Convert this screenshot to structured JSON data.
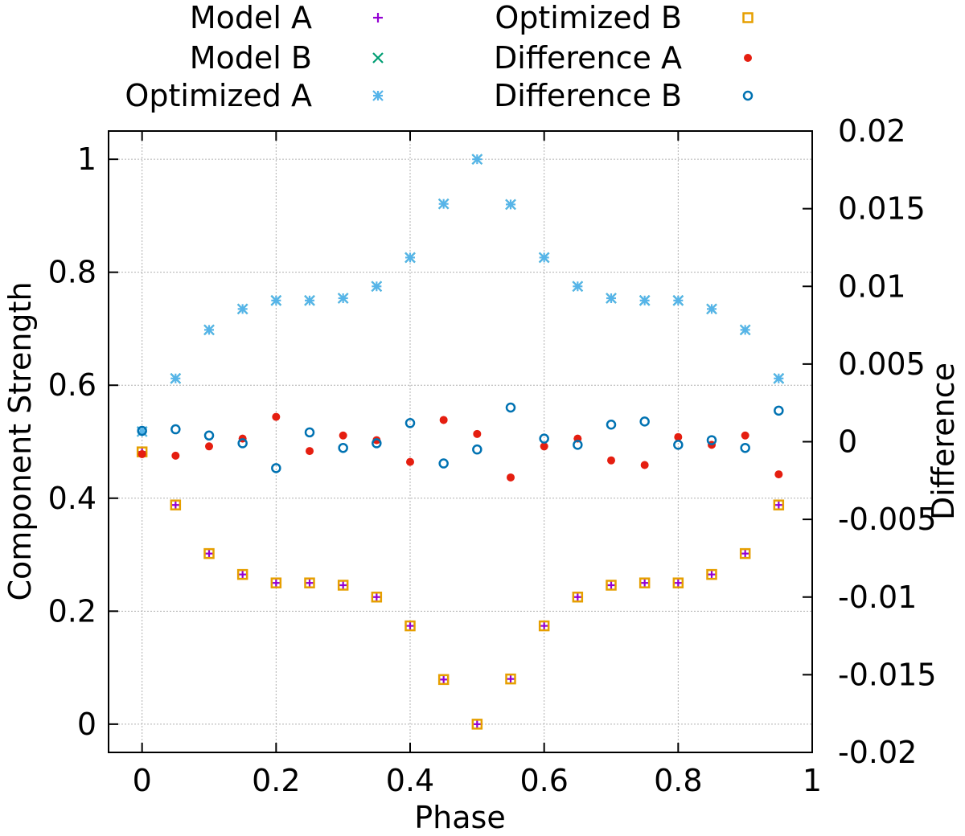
{
  "chart_data": {
    "type": "scatter",
    "xlabel": "Phase",
    "ylabel": "Component Strength",
    "y2label": "Difference",
    "xlim": [
      -0.05,
      1.0
    ],
    "ylim": [
      -0.05,
      1.05
    ],
    "y2lim": [
      -0.02,
      0.02
    ],
    "xticks": [
      "0",
      "0.2",
      "0.4",
      "0.6",
      "0.8",
      "1"
    ],
    "xtick_values": [
      0,
      0.2,
      0.4,
      0.6,
      0.8,
      1.0
    ],
    "yticks": [
      "0",
      "0.2",
      "0.4",
      "0.6",
      "0.8",
      "1"
    ],
    "ytick_values": [
      0,
      0.2,
      0.4,
      0.6,
      0.8,
      1.0
    ],
    "y2ticks": [
      "-0.02",
      "-0.015",
      "-0.01",
      "-0.005",
      "0",
      "0.005",
      "0.01",
      "0.015",
      "0.02"
    ],
    "y2tick_values": [
      -0.02,
      -0.015,
      -0.01,
      -0.005,
      0,
      0.005,
      0.01,
      0.015,
      0.02
    ],
    "grid": true,
    "legend_position": "top",
    "x": [
      0,
      0.05,
      0.1,
      0.15,
      0.2,
      0.25,
      0.3,
      0.35,
      0.4,
      0.45,
      0.5,
      0.55,
      0.6,
      0.65,
      0.7,
      0.75,
      0.8,
      0.85,
      0.9,
      0.95
    ],
    "series": [
      {
        "name": "Model A",
        "axis": "y",
        "marker": "plus",
        "color": "#9400d3",
        "values": [
          0.482,
          0.388,
          0.302,
          0.265,
          0.25,
          0.25,
          0.246,
          0.225,
          0.174,
          0.079,
          0.0,
          0.08,
          0.174,
          0.225,
          0.246,
          0.25,
          0.25,
          0.265,
          0.302,
          0.388
        ]
      },
      {
        "name": "Model B",
        "axis": "y",
        "marker": "cross",
        "color": "#009e73",
        "values": [
          0.518,
          0.612,
          0.698,
          0.735,
          0.75,
          0.75,
          0.754,
          0.775,
          0.826,
          0.921,
          1.0,
          0.92,
          0.826,
          0.775,
          0.754,
          0.75,
          0.75,
          0.735,
          0.698,
          0.612
        ]
      },
      {
        "name": "Optimized A",
        "axis": "y",
        "marker": "star",
        "color": "#56b4e9",
        "values": [
          0.518,
          0.612,
          0.698,
          0.735,
          0.75,
          0.75,
          0.754,
          0.775,
          0.826,
          0.921,
          1.0,
          0.92,
          0.826,
          0.775,
          0.754,
          0.75,
          0.75,
          0.735,
          0.698,
          0.612
        ]
      },
      {
        "name": "Optimized B",
        "axis": "y",
        "marker": "square",
        "color": "#e69f00",
        "values": [
          0.482,
          0.388,
          0.302,
          0.265,
          0.25,
          0.25,
          0.246,
          0.225,
          0.174,
          0.079,
          0.0,
          0.08,
          0.174,
          0.225,
          0.246,
          0.25,
          0.25,
          0.265,
          0.302,
          0.388
        ]
      },
      {
        "name": "Difference A",
        "axis": "y2",
        "marker": "dot",
        "color": "#e51e10",
        "values": [
          -0.0008,
          -0.0009,
          -0.0003,
          0.0002,
          0.0016,
          -0.0006,
          0.0004,
          0.0001,
          -0.0013,
          0.0014,
          0.0005,
          -0.0023,
          -0.0003,
          0.0002,
          -0.0012,
          -0.0015,
          0.0003,
          -0.0002,
          0.0004,
          -0.0021
        ]
      },
      {
        "name": "Difference B",
        "axis": "y2",
        "marker": "circle",
        "color": "#0072b2",
        "values": [
          0.0007,
          0.0008,
          0.0004,
          -0.0001,
          -0.0017,
          0.0006,
          -0.0004,
          -0.0001,
          0.0012,
          -0.0014,
          -0.0005,
          0.0022,
          0.0002,
          -0.0002,
          0.0011,
          0.0013,
          -0.0002,
          0.0001,
          -0.0004,
          0.002
        ]
      }
    ]
  }
}
